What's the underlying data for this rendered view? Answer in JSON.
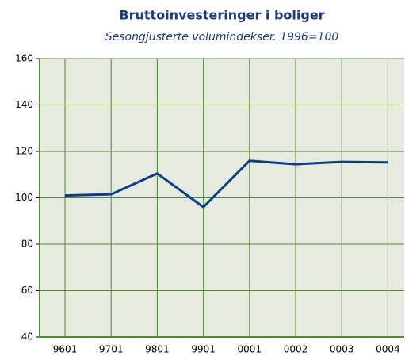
{
  "chart_data": {
    "type": "line",
    "title": "Bruttoinvesteringer i boliger",
    "subtitle": "Sesongjusterte volumindekser. 1996=100",
    "categories": [
      "9601",
      "9701",
      "9801",
      "9901",
      "0001",
      "0002",
      "0003",
      "0004"
    ],
    "series": [
      {
        "name": "Bruttoinvesteringer i boliger",
        "color": "#0a3d8a",
        "values": [
          101,
          101.5,
          110.5,
          96,
          116,
          114.5,
          115.5,
          115.3
        ]
      }
    ],
    "ylim": [
      40,
      160
    ],
    "yticks": [
      40,
      60,
      80,
      100,
      120,
      140,
      160
    ],
    "grid": true
  }
}
